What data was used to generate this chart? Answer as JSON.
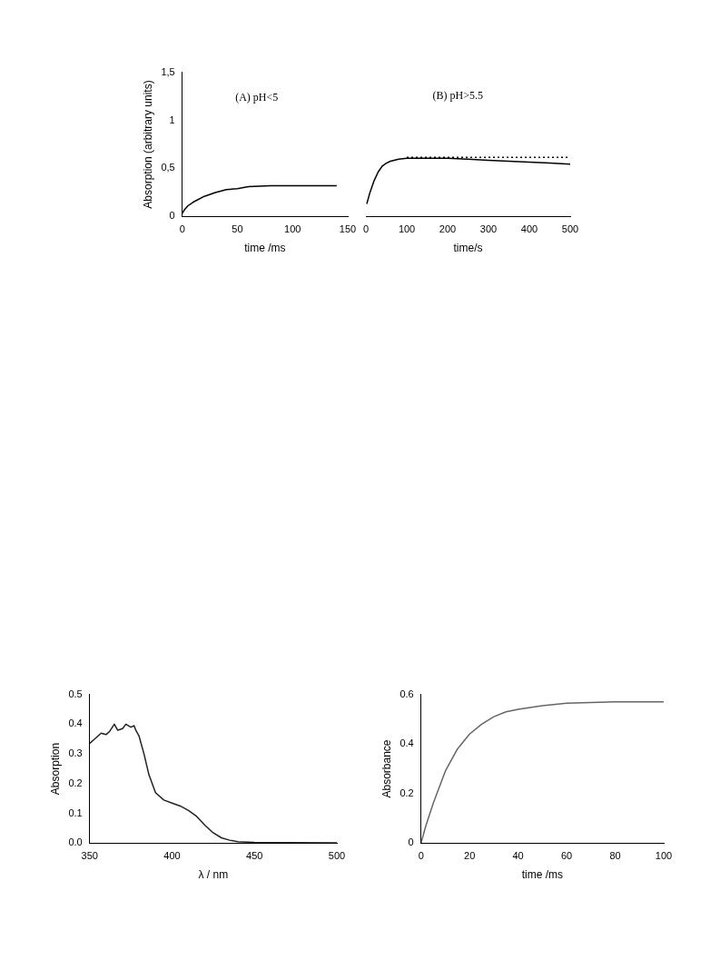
{
  "chart_data": [
    {
      "type": "line",
      "ylabel": "Absorption (arbitrary units)",
      "xlabel": "time /ms",
      "annotations": [
        "(A) pH<5"
      ],
      "marker": "none",
      "xlim": [
        0,
        150
      ],
      "xticks": [
        0,
        50,
        100,
        150
      ],
      "ylim": [
        0,
        1.5
      ],
      "yticks": [
        0,
        {
          "value": 0.5,
          "label": "0,5"
        },
        1,
        {
          "value": 1.5,
          "label": "1,5"
        }
      ],
      "series": [
        {
          "color": "#000000",
          "x": [
            0,
            2,
            5,
            10,
            20,
            30,
            40,
            50,
            60,
            80,
            100,
            140
          ],
          "values": [
            0.03,
            0.07,
            0.11,
            0.15,
            0.21,
            0.25,
            0.28,
            0.29,
            0.31,
            0.32,
            0.32,
            0.32
          ]
        }
      ]
    },
    {
      "type": "line",
      "xlabel": "time/s",
      "annotations": [
        "(B) pH>5.5"
      ],
      "marker": "none",
      "tick_labels": "x",
      "xlim": [
        0,
        500
      ],
      "xticks": [
        0,
        100,
        200,
        300,
        400,
        500
      ],
      "ylim": [
        0,
        1.5
      ],
      "series": [
        {
          "color": "#000000",
          "line_style": "solid",
          "x": [
            2,
            10,
            20,
            30,
            40,
            50,
            60,
            80,
            100,
            150,
            200,
            250,
            300,
            350,
            400,
            450,
            500
          ],
          "values": [
            0.13,
            0.25,
            0.37,
            0.46,
            0.52,
            0.55,
            0.57,
            0.59,
            0.6,
            0.6,
            0.6,
            0.59,
            0.58,
            0.57,
            0.56,
            0.55,
            0.54
          ]
        },
        {
          "color": "#000000",
          "line_style": "dotted",
          "x": [
            100,
            500
          ],
          "values": [
            0.61,
            0.61
          ]
        }
      ]
    },
    {
      "type": "line",
      "ylabel": "Absorption",
      "xlabel": "λ / nm",
      "marker": "none",
      "xlim": [
        350,
        500
      ],
      "xticks": [
        350,
        400,
        450,
        500
      ],
      "ylim": [
        0,
        0.5
      ],
      "yticks": [
        {
          "value": 0,
          "label": "0.0"
        },
        0.1,
        0.2,
        0.3,
        0.4,
        0.5
      ],
      "series": [
        {
          "color": "#222222",
          "x": [
            350,
            353,
            355,
            357,
            360,
            362,
            365,
            367,
            370,
            372,
            375,
            377,
            378,
            380,
            383,
            386,
            390,
            395,
            400,
            405,
            410,
            415,
            420,
            425,
            430,
            435,
            440,
            450,
            470,
            500
          ],
          "values": [
            0.335,
            0.35,
            0.36,
            0.37,
            0.365,
            0.375,
            0.4,
            0.38,
            0.385,
            0.4,
            0.39,
            0.395,
            0.38,
            0.36,
            0.3,
            0.23,
            0.17,
            0.145,
            0.135,
            0.125,
            0.11,
            0.09,
            0.06,
            0.035,
            0.018,
            0.01,
            0.005,
            0.003,
            0.002,
            0.001
          ]
        }
      ]
    },
    {
      "type": "line",
      "ylabel": "Absorbance",
      "xlabel": "time /ms",
      "marker": "none",
      "xlim": [
        0,
        100
      ],
      "xticks": [
        0,
        20,
        40,
        60,
        80,
        100
      ],
      "ylim": [
        0,
        0.6
      ],
      "yticks": [
        0,
        0.2,
        0.4,
        0.6
      ],
      "series": [
        {
          "color": "#666666",
          "x": [
            0,
            2,
            5,
            10,
            15,
            20,
            25,
            30,
            35,
            40,
            50,
            60,
            80,
            100
          ],
          "values": [
            0,
            0.07,
            0.16,
            0.29,
            0.38,
            0.44,
            0.48,
            0.51,
            0.53,
            0.54,
            0.555,
            0.565,
            0.57,
            0.57
          ]
        }
      ]
    }
  ]
}
